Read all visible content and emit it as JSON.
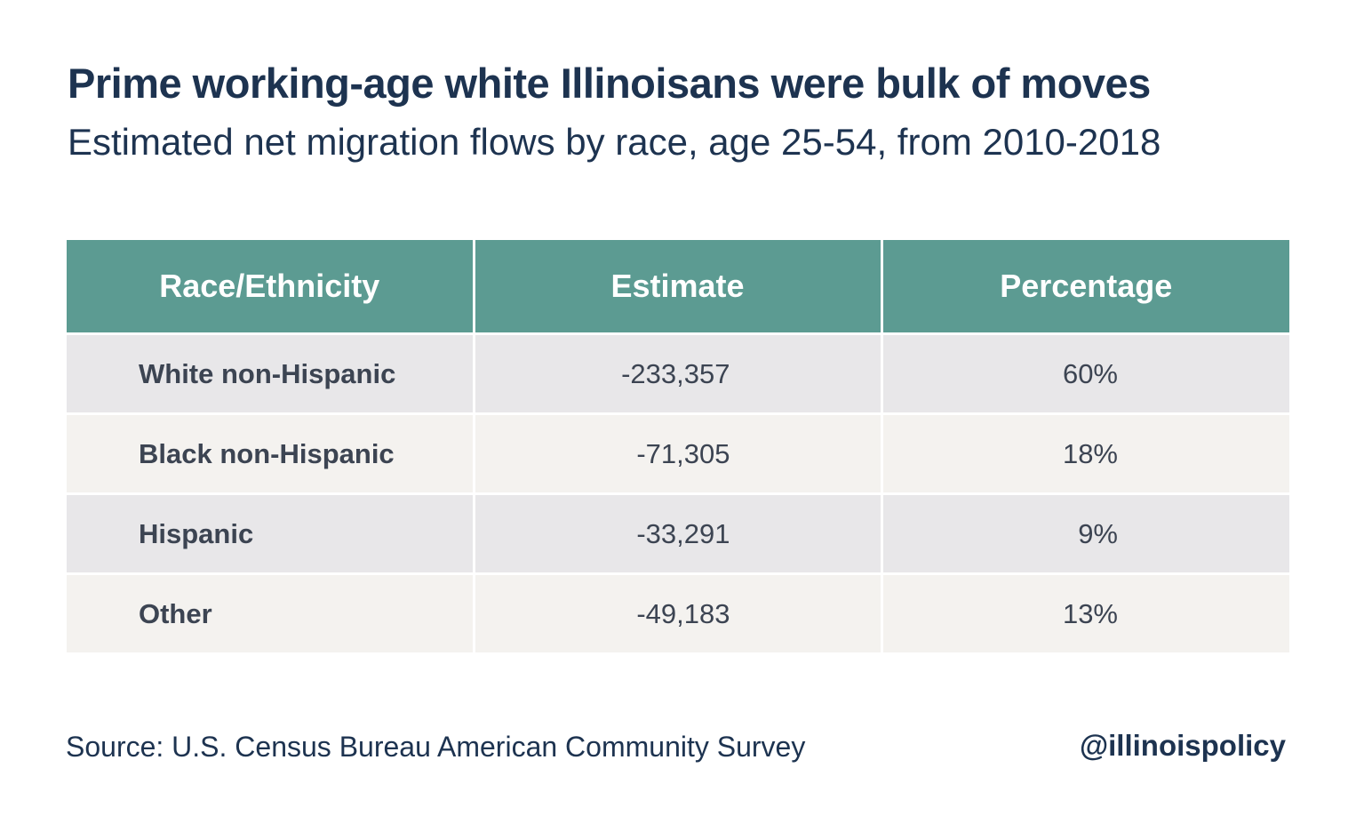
{
  "header": {
    "title": "Prime working-age white Illinoisans were bulk of moves",
    "subtitle": "Estimated net migration flows by race, age 25-54, from 2010-2018"
  },
  "chart_data": {
    "type": "table",
    "title": "Prime working-age white Illinoisans were bulk of moves",
    "subtitle": "Estimated net migration flows by race, age 25-54, from 2010-2018",
    "columns": [
      "Race/Ethnicity",
      "Estimate",
      "Percentage"
    ],
    "rows": [
      {
        "race": "White non-Hispanic",
        "estimate": "-233,357",
        "percentage": "60%"
      },
      {
        "race": "Black non-Hispanic",
        "estimate": "-71,305",
        "percentage": "18%"
      },
      {
        "race": "Hispanic",
        "estimate": "-33,291",
        "percentage": "9%"
      },
      {
        "race": "Other",
        "estimate": "-49,183",
        "percentage": "13%"
      }
    ]
  },
  "footer": {
    "source": "Source: U.S. Census Bureau American Community Survey",
    "handle": "@illinoispolicy"
  },
  "colors": {
    "header_bg": "#5c9b92",
    "row_odd": "#e8e7e9",
    "row_even": "#f4f2ef",
    "title_text": "#1d3350"
  }
}
